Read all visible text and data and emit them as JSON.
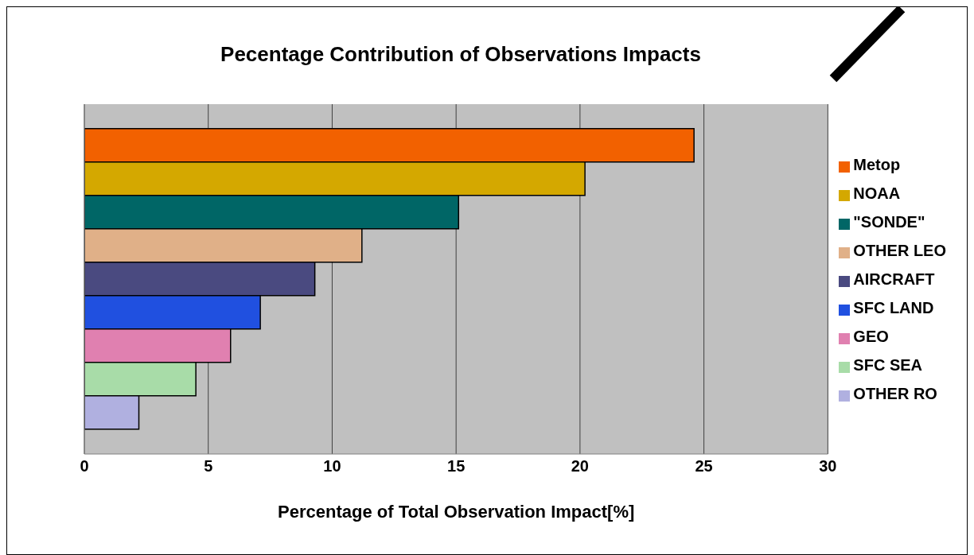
{
  "chart_data": {
    "type": "bar",
    "orientation": "horizontal",
    "title": "Pecentage Contribution of Observations Impacts",
    "xlabel": "Percentage of Total Observation Impact[%]",
    "categories": [
      null
    ],
    "series": [
      {
        "name": "Metop",
        "color": "#f26100",
        "values": [
          24.6
        ]
      },
      {
        "name": "NOAA",
        "color": "#d4a800",
        "values": [
          20.2
        ]
      },
      {
        "name": "\"SONDE\"",
        "color": "#006666",
        "values": [
          15.1
        ]
      },
      {
        "name": "OTHER LEO",
        "color": "#e0b088",
        "values": [
          11.2
        ]
      },
      {
        "name": "AIRCRAFT",
        "color": "#4a4a80",
        "values": [
          9.3
        ]
      },
      {
        "name": "SFC LAND",
        "color": "#2050e0",
        "values": [
          7.1
        ]
      },
      {
        "name": "GEO",
        "color": "#e080b0",
        "values": [
          5.9
        ]
      },
      {
        "name": "SFC SEA",
        "color": "#a8dca8",
        "values": [
          4.5
        ]
      },
      {
        "name": "OTHER RO",
        "color": "#b0b0e0",
        "values": [
          2.2
        ]
      }
    ],
    "xlim": [
      0,
      30
    ],
    "xticks": [
      0,
      5,
      10,
      15,
      20,
      25,
      30
    ],
    "grid": "x",
    "legend": "right",
    "tick_labels": "x"
  }
}
